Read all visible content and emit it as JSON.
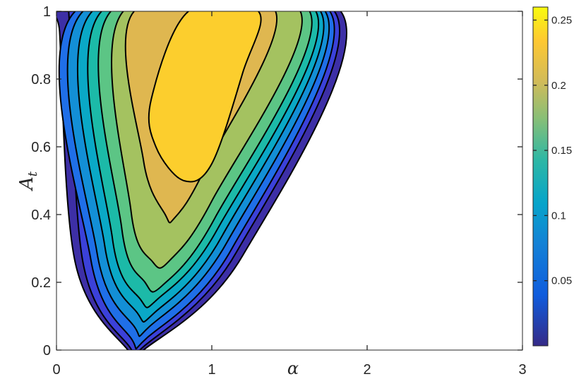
{
  "chart_data": {
    "type": "contour",
    "title": "",
    "xlabel": "α",
    "ylabel": "A",
    "ylabel_subscript": "t",
    "xlim": [
      0,
      3
    ],
    "ylim": [
      0,
      1
    ],
    "x_ticks": [
      "0",
      "1",
      "2",
      "3"
    ],
    "y_ticks": [
      "0",
      "0.2",
      "0.4",
      "0.6",
      "0.8",
      "1"
    ],
    "grid": false,
    "colormap": "parula",
    "colorbar": {
      "range": [
        0,
        0.26
      ],
      "ticks": [
        "0.05",
        "0.1",
        "0.15",
        "0.2",
        "0.25"
      ],
      "tick_values": [
        0.05,
        0.1,
        0.15,
        0.2,
        0.25
      ]
    },
    "levels": [
      0.0001,
      0.025,
      0.05,
      0.075,
      0.1,
      0.125,
      0.15,
      0.175,
      0.2,
      0.225
    ],
    "level_colors": [
      "#3d2fa6",
      "#3b41d9",
      "#1f6fe8",
      "#138fd6",
      "#0aa8c6",
      "#1cbaa8",
      "#5cc585",
      "#a4c260",
      "#dfb750",
      "#fcce2d"
    ],
    "region_boundaries": [
      {
        "level": 0.0001,
        "points": [
          [
            0.02,
            0.94
          ],
          [
            0.12,
            0.26
          ],
          [
            0.46,
            0.0
          ],
          [
            0.56,
            0.0
          ],
          [
            1.2,
            0.28
          ],
          [
            1.83,
            1.0
          ],
          [
            0.02,
            1.0
          ]
        ]
      },
      {
        "level": 0.025,
        "points": [
          [
            0.08,
            0.99
          ],
          [
            0.17,
            0.26
          ],
          [
            0.47,
            0.01
          ],
          [
            0.56,
            0.01
          ],
          [
            1.16,
            0.29
          ],
          [
            1.79,
            1.0
          ],
          [
            0.08,
            1.0
          ]
        ]
      },
      {
        "level": 0.05,
        "points": [
          [
            0.12,
            1.0
          ],
          [
            0.22,
            0.27
          ],
          [
            0.48,
            0.035
          ],
          [
            0.58,
            0.035
          ],
          [
            1.13,
            0.3
          ],
          [
            1.76,
            1.0
          ]
        ]
      },
      {
        "level": 0.075,
        "points": [
          [
            0.17,
            1.0
          ],
          [
            0.26,
            0.29
          ],
          [
            0.5,
            0.07
          ],
          [
            0.6,
            0.07
          ],
          [
            1.1,
            0.32
          ],
          [
            1.73,
            1.0
          ]
        ]
      },
      {
        "level": 0.1,
        "points": [
          [
            0.23,
            1.0
          ],
          [
            0.31,
            0.31
          ],
          [
            0.52,
            0.11
          ],
          [
            0.63,
            0.11
          ],
          [
            1.07,
            0.34
          ],
          [
            1.7,
            1.0
          ]
        ]
      },
      {
        "level": 0.125,
        "points": [
          [
            0.29,
            1.0
          ],
          [
            0.36,
            0.33
          ],
          [
            0.54,
            0.15
          ],
          [
            0.65,
            0.15
          ],
          [
            1.04,
            0.36
          ],
          [
            1.67,
            1.0
          ]
        ]
      },
      {
        "level": 0.15,
        "points": [
          [
            0.35,
            1.0
          ],
          [
            0.42,
            0.36
          ],
          [
            0.57,
            0.2
          ],
          [
            0.68,
            0.19
          ],
          [
            1.02,
            0.39
          ],
          [
            1.63,
            1.0
          ]
        ]
      },
      {
        "level": 0.175,
        "points": [
          [
            0.43,
            1.0
          ],
          [
            0.48,
            0.41
          ],
          [
            0.62,
            0.26
          ],
          [
            0.73,
            0.265
          ],
          [
            1.0,
            0.44
          ],
          [
            1.57,
            1.0
          ]
        ]
      },
      {
        "level": 0.2,
        "points": [
          [
            0.5,
            1.0
          ],
          [
            0.56,
            0.56
          ],
          [
            0.7,
            0.4
          ],
          [
            0.76,
            0.39
          ],
          [
            0.95,
            0.53
          ],
          [
            1.41,
            1.0
          ]
        ]
      },
      {
        "level": 0.225,
        "points": [
          [
            0.61,
            0.74
          ],
          [
            0.64,
            0.6
          ],
          [
            0.82,
            0.5
          ],
          [
            1.0,
            0.55
          ],
          [
            1.2,
            0.82
          ],
          [
            1.3,
            1.0
          ],
          [
            0.85,
            1.0
          ]
        ]
      }
    ]
  }
}
